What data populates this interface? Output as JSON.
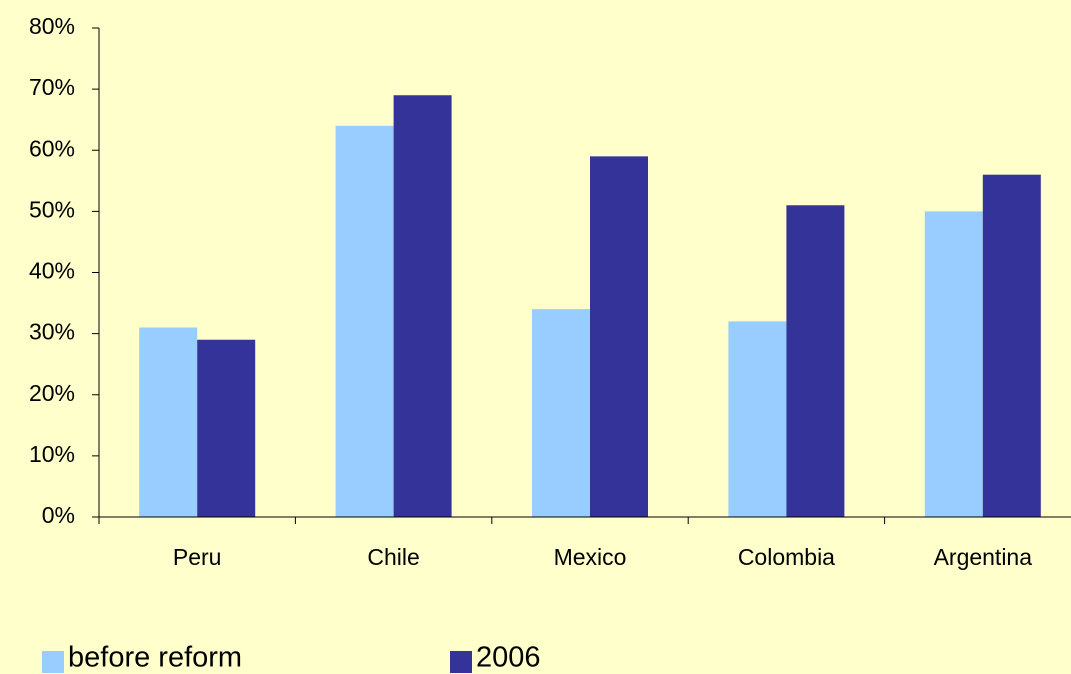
{
  "chart_data": {
    "type": "bar",
    "categories": [
      "Peru",
      "Chile",
      "Mexico",
      "Colombia",
      "Argentina"
    ],
    "series": [
      {
        "name": "before reform",
        "color": "#99CCFF",
        "values": [
          31,
          64,
          34,
          32,
          50
        ]
      },
      {
        "name": "2006",
        "color": "#333399",
        "values": [
          29,
          69,
          59,
          51,
          56
        ]
      }
    ],
    "ylim": [
      0,
      80
    ],
    "yticks": [
      {
        "value": 0,
        "label": "0%"
      },
      {
        "value": 10,
        "label": "10%"
      },
      {
        "value": 20,
        "label": "20%"
      },
      {
        "value": 30,
        "label": "30%"
      },
      {
        "value": 40,
        "label": "40%"
      },
      {
        "value": 50,
        "label": "50%"
      },
      {
        "value": 60,
        "label": "60%"
      },
      {
        "value": 70,
        "label": "70%"
      },
      {
        "value": 80,
        "label": "80%"
      }
    ],
    "grid": false,
    "legend": "bottom"
  }
}
